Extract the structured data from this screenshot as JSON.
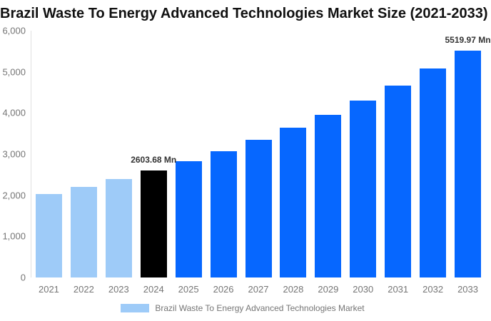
{
  "title": "Brazil Waste To Energy Advanced Technologies Market Size (2021-2033)",
  "chart_data": {
    "type": "bar",
    "title": "Brazil Waste To Energy Advanced Technologies Market Size (2021-2033)",
    "categories": [
      "2021",
      "2022",
      "2023",
      "2024",
      "2025",
      "2026",
      "2027",
      "2028",
      "2029",
      "2030",
      "2031",
      "2032",
      "2033"
    ],
    "series": [
      {
        "name": "Brazil Waste To Energy Advanced Technologies Market",
        "values": [
          2026,
          2203,
          2395,
          2603.68,
          2830,
          3077,
          3345,
          3636,
          3953,
          4298,
          4672,
          5079,
          5519.97
        ]
      }
    ],
    "unit": "Mn",
    "xlabel": "",
    "ylabel": "",
    "ylim": [
      0,
      6000
    ],
    "y_ticks": [
      "6,000",
      "5,000",
      "4,000",
      "3,000",
      "2,000",
      "1,000",
      "0"
    ],
    "grid": false,
    "legend_position": "bottom",
    "bar_colors": [
      "#9ecbf8",
      "#9ecbf8",
      "#9ecbf8",
      "#000000",
      "#0667ff",
      "#0667ff",
      "#0667ff",
      "#0667ff",
      "#0667ff",
      "#0667ff",
      "#0667ff",
      "#0667ff",
      "#0667ff"
    ],
    "data_labels": [
      {
        "category": "2024",
        "text": "2603.68 Mn"
      },
      {
        "category": "2033",
        "text": "5519.97 Mn"
      }
    ]
  },
  "legend": {
    "label": "Brazil Waste To Energy Advanced Technologies Market",
    "swatch_color": "#9ecbf8"
  },
  "colors": {
    "past_bar": "#9ecbf8",
    "current_bar": "#000000",
    "forecast_bar": "#0667ff",
    "axis_line": "#e0e0e0",
    "tick_text": "#757575",
    "title_text": "#111111",
    "data_label_text": "#333333"
  }
}
